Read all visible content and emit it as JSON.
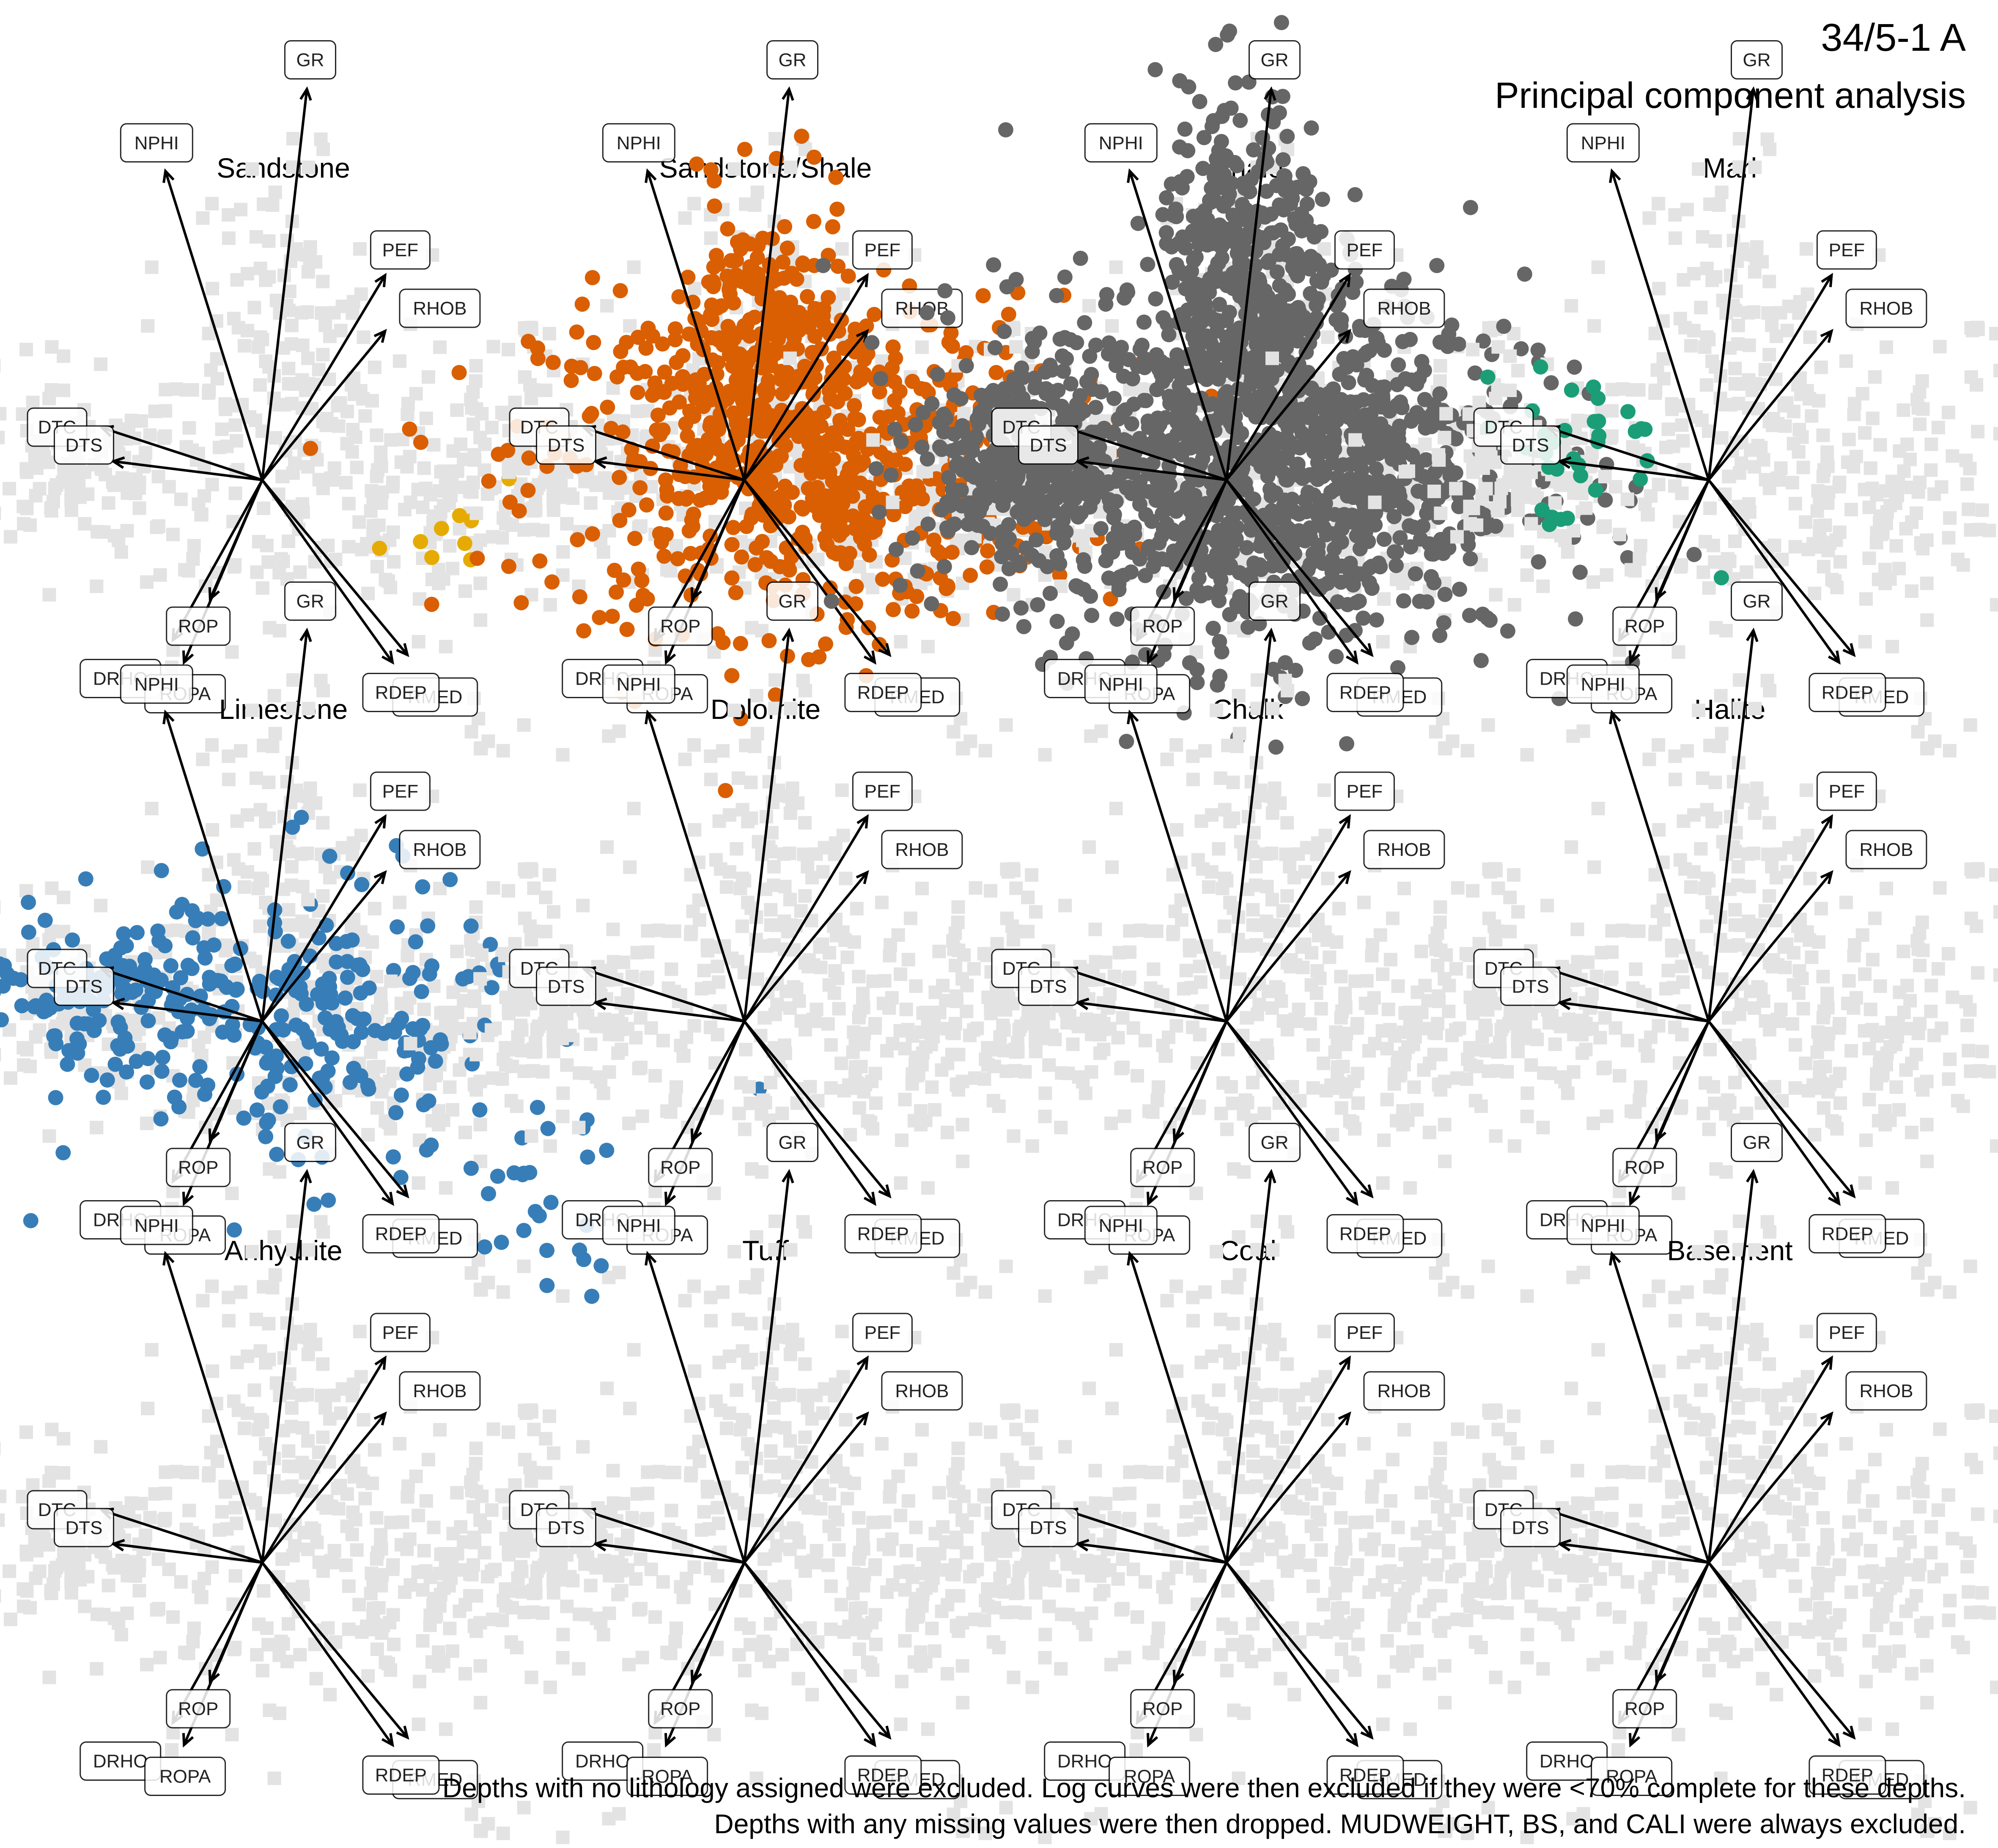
{
  "header": {
    "title": "34/5-1 A",
    "subtitle": "Principal component analysis"
  },
  "footer": {
    "line1": "Depths with no lithology assigned were excluded. Log curves were then excluded if they were <70% complete for these depths.",
    "line2": "Depths with any missing values were then dropped. MUDWEIGHT, BS, and CALI were always excluded."
  },
  "chart_data": {
    "type": "scatter",
    "plot": "PCA biplot small multiples, one panel per lithology; grey = all depths, colored = depths of the panel's lithology",
    "grid": false,
    "axes_visible": false,
    "loadings": [
      {
        "name": "GR",
        "x": 0.12,
        "y": 1.05
      },
      {
        "name": "NPHI",
        "x": -0.26,
        "y": 0.83
      },
      {
        "name": "PEF",
        "x": 0.33,
        "y": 0.55
      },
      {
        "name": "RHOB",
        "x": 0.33,
        "y": 0.4
      },
      {
        "name": "DTC",
        "x": -0.43,
        "y": 0.14
      },
      {
        "name": "DTS",
        "x": -0.4,
        "y": 0.05
      },
      {
        "name": "DRHO",
        "x": -0.24,
        "y": -0.43
      },
      {
        "name": "ROP",
        "x": -0.14,
        "y": -0.32
      },
      {
        "name": "ROPA",
        "x": -0.21,
        "y": -0.49
      },
      {
        "name": "RMED",
        "x": 0.35,
        "y": -0.49
      },
      {
        "name": "RDEP",
        "x": 0.39,
        "y": -0.47
      }
    ],
    "panels": [
      {
        "lithology": "Sandstone",
        "color": "#E6AB02",
        "cluster": [
          {
            "cx": 0.58,
            "cy": -0.14,
            "sx": 0.14,
            "sy": 0.06,
            "n": 9
          }
        ]
      },
      {
        "lithology": "Sandstone/Shale",
        "color": "#D95F02",
        "cluster": [
          {
            "cx": 0.15,
            "cy": 0.05,
            "sx": 0.35,
            "sy": 0.22,
            "n": 700
          },
          {
            "cx": 0.05,
            "cy": 0.4,
            "sx": 0.12,
            "sy": 0.18,
            "n": 180
          }
        ]
      },
      {
        "lithology": "Shale",
        "color": "#666666",
        "cluster": [
          {
            "cx": 0.1,
            "cy": 0.05,
            "sx": 0.35,
            "sy": 0.25,
            "n": 1200
          },
          {
            "cx": 0.05,
            "cy": 0.55,
            "sx": 0.12,
            "sy": 0.25,
            "n": 350
          },
          {
            "cx": -0.55,
            "cy": 0.05,
            "sx": 0.14,
            "sy": 0.12,
            "n": 300
          }
        ]
      },
      {
        "lithology": "Marl",
        "color": "#1B9E77",
        "cluster": [
          {
            "cx": -0.35,
            "cy": 0.1,
            "sx": 0.15,
            "sy": 0.12,
            "n": 35
          }
        ]
      },
      {
        "lithology": "Limestone",
        "color": "#377EB8",
        "cluster": [
          {
            "cx": 0.05,
            "cy": 0.0,
            "sx": 0.3,
            "sy": 0.2,
            "n": 260
          },
          {
            "cx": -0.45,
            "cy": 0.07,
            "sx": 0.12,
            "sy": 0.06,
            "n": 90
          },
          {
            "cx": 0.75,
            "cy": -0.5,
            "sx": 0.12,
            "sy": 0.12,
            "n": 25
          }
        ]
      },
      {
        "lithology": "Dolomite",
        "color": "#999999",
        "cluster": []
      },
      {
        "lithology": "Chalk",
        "color": "#999999",
        "cluster": []
      },
      {
        "lithology": "Halite",
        "color": "#999999",
        "cluster": []
      },
      {
        "lithology": "Anhydrite",
        "color": "#999999",
        "cluster": []
      },
      {
        "lithology": "Tuff",
        "color": "#999999",
        "cluster": []
      },
      {
        "lithology": "Coal",
        "color": "#999999",
        "cluster": []
      },
      {
        "lithology": "Basement",
        "color": "#999999",
        "cluster": []
      }
    ]
  }
}
